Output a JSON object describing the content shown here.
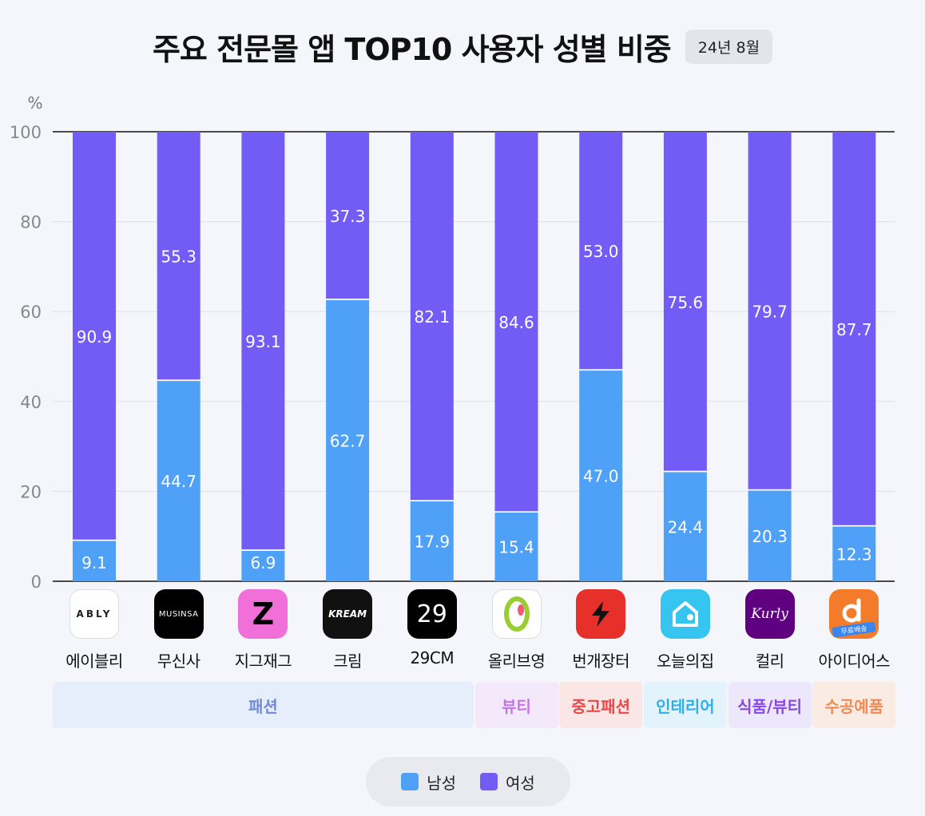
{
  "header": {
    "title": "주요 전문몰 앱 TOP10 사용자 성별 비중",
    "date_badge": "24년 8월"
  },
  "colors": {
    "male": "#4ea1f7",
    "female": "#735cf5"
  },
  "chart_data": {
    "type": "bar",
    "stacked": true,
    "title": "주요 전문몰 앱 TOP10 사용자 성별 비중",
    "ylabel": "%",
    "ylim": [
      0,
      100
    ],
    "yticks": [
      0,
      20,
      40,
      60,
      80,
      100
    ],
    "grid": true,
    "legend_position": "bottom-center",
    "categories": [
      "에이블리",
      "무신사",
      "지그재그",
      "크림",
      "29CM",
      "올리브영",
      "번개장터",
      "오늘의집",
      "컬리",
      "아이디어스"
    ],
    "series": [
      {
        "name": "남성",
        "values": [
          9.1,
          44.7,
          6.9,
          62.7,
          17.9,
          15.4,
          47.0,
          24.4,
          20.3,
          12.3
        ]
      },
      {
        "name": "여성",
        "values": [
          90.9,
          55.3,
          93.1,
          37.3,
          82.1,
          84.6,
          53.0,
          75.6,
          79.7,
          87.7
        ]
      }
    ],
    "label_text": {
      "male": [
        "9.1",
        "44.7",
        "6.9",
        "62.7",
        "17.9",
        "15.4",
        "47.0",
        "24.4",
        "20.3",
        "12.3"
      ],
      "female": [
        "90.9",
        "55.3",
        "93.1",
        "37.3",
        "82.1",
        "84.6",
        "53.0",
        "75.6",
        "79.7",
        "87.7"
      ]
    }
  },
  "apps": [
    {
      "name": "에이블리",
      "icon": "ably-logo-icon",
      "logo_text": "ABLY",
      "bg": "#ffffff",
      "fg": "#222222"
    },
    {
      "name": "무신사",
      "icon": "musinsa-logo-icon",
      "logo_text": "MUSINSA",
      "bg": "#000000",
      "fg": "#ffffff"
    },
    {
      "name": "지그재그",
      "icon": "zigzag-logo-icon",
      "logo_text": "Z",
      "bg": "#f06fd9",
      "fg": "#000000"
    },
    {
      "name": "크림",
      "icon": "kream-logo-icon",
      "logo_text": "KREAM",
      "bg": "#111111",
      "fg": "#ffffff"
    },
    {
      "name": "29CM",
      "icon": "29cm-logo-icon",
      "logo_text": "29",
      "bg": "#000000",
      "fg": "#ffffff"
    },
    {
      "name": "올리브영",
      "icon": "oliveyoung-logo-icon",
      "logo_text": "",
      "bg": "#ffffff",
      "fg": "#9acd32"
    },
    {
      "name": "번개장터",
      "icon": "lightning-logo-icon",
      "logo_text": "",
      "bg": "#e8302a",
      "fg": "#000000"
    },
    {
      "name": "오늘의집",
      "icon": "house-logo-icon",
      "logo_text": "",
      "bg": "#35c5f0",
      "fg": "#ffffff"
    },
    {
      "name": "컬리",
      "icon": "kurly-logo-icon",
      "logo_text": "Kurly",
      "bg": "#5f0080",
      "fg": "#ffffff"
    },
    {
      "name": "아이디어스",
      "icon": "idus-logo-icon",
      "logo_text": "무료배송",
      "bg": "#f47b2a",
      "fg": "#ffffff"
    }
  ],
  "categories": [
    {
      "label": "패션",
      "span": [
        0,
        4
      ],
      "bg": "#e6eefc",
      "fg": "#6f8ad8"
    },
    {
      "label": "뷰티",
      "span": [
        5,
        5
      ],
      "bg": "#f3e9fb",
      "fg": "#c377e6"
    },
    {
      "label": "중고패션",
      "span": [
        6,
        6
      ],
      "bg": "#fbe6e6",
      "fg": "#e64848"
    },
    {
      "label": "인테리어",
      "span": [
        7,
        7
      ],
      "bg": "#e3f3fb",
      "fg": "#2faee8"
    },
    {
      "label": "식품/뷰티",
      "span": [
        8,
        8
      ],
      "bg": "#ede7fb",
      "fg": "#8a49e0"
    },
    {
      "label": "수공예품",
      "span": [
        9,
        9
      ],
      "bg": "#fbece3",
      "fg": "#f08a55"
    }
  ],
  "legend": {
    "male_label": "남성",
    "female_label": "여성"
  }
}
